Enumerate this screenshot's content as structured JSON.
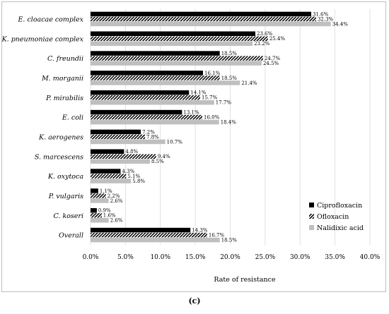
{
  "caption": "(c)",
  "chart_data": {
    "type": "bar",
    "orientation": "horizontal",
    "categories": [
      "E. cloacae complex",
      "K. pneumoniae complex",
      "C. freundii",
      "M. morganii",
      "P. mirabilis",
      "E. coli",
      "K. aerogenes",
      "S. marcescens",
      "K. oxytoca",
      "P. vulgaris",
      "C. koseri",
      "Overall"
    ],
    "series": [
      {
        "name": "Ciprofloxacin",
        "values": [
          31.6,
          23.6,
          18.5,
          16.1,
          14.1,
          13.1,
          7.2,
          4.8,
          4.3,
          1.1,
          0.9,
          14.3
        ],
        "labels": [
          "31.6%",
          "23.6%",
          "18.5%",
          "16.1%",
          "14.1%",
          "13.1%",
          "7.2%",
          "4.8%",
          "4.3%",
          "1.1%",
          "0.9%",
          "14.3%"
        ],
        "color": "#000000",
        "pattern": "solid"
      },
      {
        "name": "Ofloxacin",
        "values": [
          32.3,
          25.4,
          24.7,
          18.5,
          15.7,
          16.0,
          7.8,
          9.4,
          5.1,
          2.2,
          1.6,
          16.7
        ],
        "labels": [
          "32.3%",
          "25.4%",
          "24.7%",
          "18.5%",
          "15.7%",
          "16.0%",
          "7.8%",
          "9.4%",
          "5.1%",
          "2.2%",
          "1.6%",
          "16.7%"
        ],
        "color": "#000000",
        "pattern": "diagonal-stripes"
      },
      {
        "name": "Nalidixic acid",
        "values": [
          34.4,
          23.2,
          24.5,
          21.4,
          17.7,
          18.4,
          10.7,
          8.5,
          5.8,
          2.6,
          2.6,
          18.5
        ],
        "labels": [
          "34.4%",
          "23.2%",
          "24.5%",
          "21.4%",
          "17.7%",
          "18.4%",
          "10.7%",
          "8.5%",
          "5.8%",
          "2.6%",
          "2.6%",
          "18.5%"
        ],
        "color": "#bfbfbf",
        "pattern": "solid"
      }
    ],
    "xlabel": "Rate of resistance",
    "ylabel": "",
    "xlim": [
      0,
      40
    ],
    "xticks": [
      0,
      5,
      10,
      15,
      20,
      25,
      30,
      35,
      40
    ],
    "xtick_labels": [
      "0.0%",
      "5.0%",
      "10.0%",
      "15.0%",
      "20.0%",
      "25.0%",
      "30.0%",
      "35.0%",
      "40.0%"
    ],
    "grid": true,
    "legend_position": "bottom-right"
  }
}
